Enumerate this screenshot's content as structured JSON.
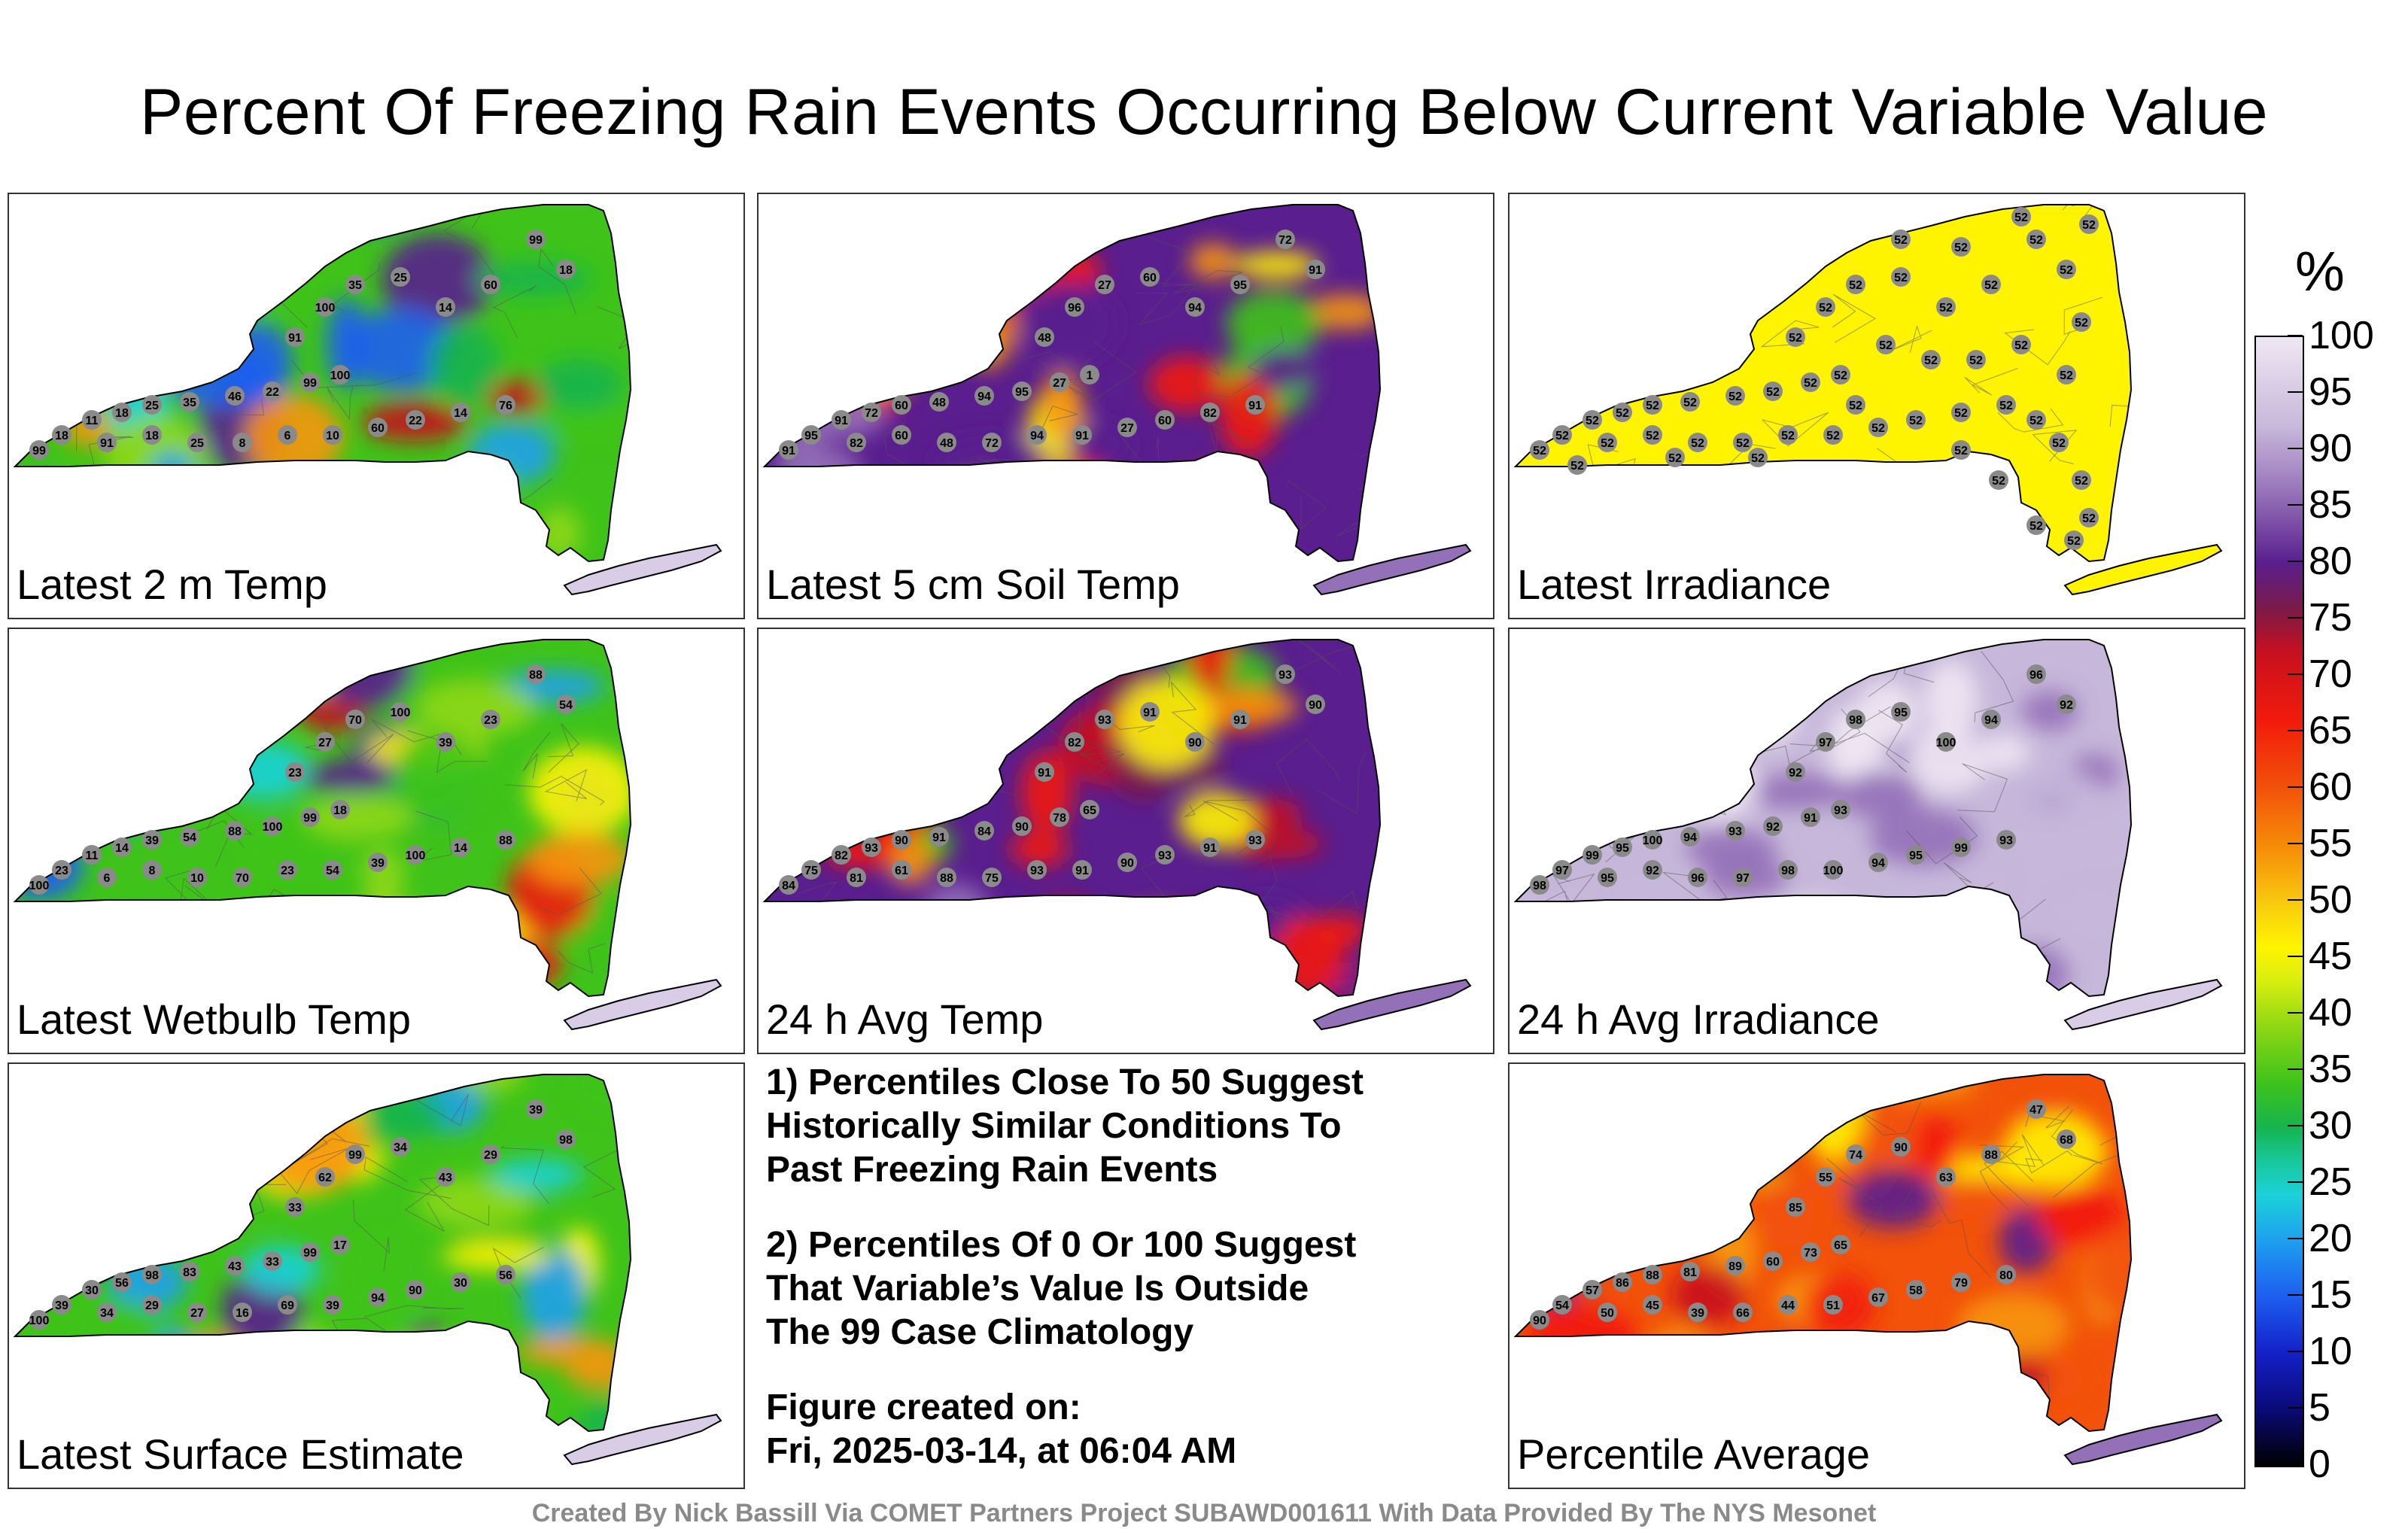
{
  "title": "Percent Of Freezing Rain Events Occurring Below Current Variable Value",
  "panels": [
    {
      "label": "Latest 2 m Temp",
      "theme": "mixed",
      "dot_value": "",
      "values": [
        "99",
        "18",
        "11",
        "18",
        "25",
        "35",
        "46",
        "22",
        "99",
        "100",
        "91",
        "18",
        "25",
        "8",
        "6",
        "10",
        "60",
        "22",
        "14",
        "76",
        "91",
        "100",
        "35",
        "25",
        "14",
        "60",
        "99",
        "18"
      ]
    },
    {
      "label": "Latest 5 cm Soil Temp",
      "theme": "purple-red",
      "dot_value": "",
      "values": [
        "91",
        "95",
        "91",
        "72",
        "60",
        "48",
        "94",
        "95",
        "27",
        "1",
        "82",
        "60",
        "48",
        "72",
        "94",
        "91",
        "27",
        "60",
        "82",
        "91",
        "48",
        "96",
        "27",
        "60",
        "94",
        "95",
        "72",
        "91"
      ]
    },
    {
      "label": "Latest Irradiance",
      "theme": "yellow",
      "dot_value": "52",
      "values": []
    },
    {
      "label": "Latest Wetbulb Temp",
      "theme": "mixed",
      "dot_value": "",
      "values": [
        "100",
        "23",
        "11",
        "14",
        "39",
        "54",
        "88",
        "100",
        "99",
        "18",
        "6",
        "8",
        "10",
        "70",
        "23",
        "54",
        "39",
        "100",
        "14",
        "88",
        "23",
        "27",
        "70",
        "100",
        "39",
        "23",
        "88",
        "54"
      ]
    },
    {
      "label": "24 h Avg Temp",
      "theme": "purple-red",
      "dot_value": "",
      "values": [
        "84",
        "75",
        "82",
        "93",
        "90",
        "91",
        "84",
        "90",
        "78",
        "65",
        "81",
        "61",
        "88",
        "75",
        "93",
        "91",
        "90",
        "93",
        "91",
        "93",
        "91",
        "82",
        "93",
        "91",
        "90",
        "91",
        "93",
        "90"
      ]
    },
    {
      "label": "24 h Avg Irradiance",
      "theme": "lavender",
      "dot_value": "",
      "values": [
        "98",
        "97",
        "99",
        "95",
        "100",
        "94",
        "93",
        "92",
        "91",
        "93",
        "95",
        "92",
        "96",
        "97",
        "98",
        "100",
        "94",
        "95",
        "99",
        "93",
        "92",
        "97",
        "98",
        "95",
        "100",
        "94",
        "96",
        "92"
      ]
    },
    {
      "label": "Latest Surface Estimate",
      "theme": "green",
      "dot_value": "",
      "values": [
        "100",
        "39",
        "30",
        "56",
        "98",
        "83",
        "43",
        "33",
        "99",
        "17",
        "34",
        "29",
        "27",
        "16",
        "69",
        "39",
        "94",
        "90",
        "30",
        "56",
        "33",
        "62",
        "99",
        "34",
        "43",
        "29",
        "39",
        "98"
      ]
    },
    {
      "label": "Percentile Average",
      "theme": "orange",
      "dot_value": "",
      "values": [
        "90",
        "54",
        "57",
        "86",
        "88",
        "81",
        "89",
        "60",
        "73",
        "65",
        "50",
        "45",
        "39",
        "66",
        "44",
        "51",
        "67",
        "58",
        "79",
        "80",
        "85",
        "55",
        "74",
        "90",
        "63",
        "88",
        "47",
        "68"
      ]
    }
  ],
  "notes": {
    "p1": [
      "1) Percentiles Close To 50 Suggest",
      "Historically Similar Conditions To",
      "Past Freezing Rain Events"
    ],
    "p2": [
      "2) Percentiles Of 0 Or 100 Suggest",
      "That Variable’s Value Is Outside",
      "The 99 Case Climatology"
    ],
    "p3": [
      "Figure created on:",
      "Fri, 2025-03-14, at 06:04 AM"
    ]
  },
  "colorbar": {
    "unit": "%",
    "ticks": [
      "100",
      "95",
      "90",
      "85",
      "80",
      "75",
      "70",
      "65",
      "60",
      "55",
      "50",
      "45",
      "40",
      "35",
      "30",
      "25",
      "20",
      "15",
      "10",
      "5",
      "0"
    ]
  },
  "footer": "Created By Nick Bassill Via COMET Partners Project SUBAWD001611 With Data Provided By The NYS Mesonet"
}
